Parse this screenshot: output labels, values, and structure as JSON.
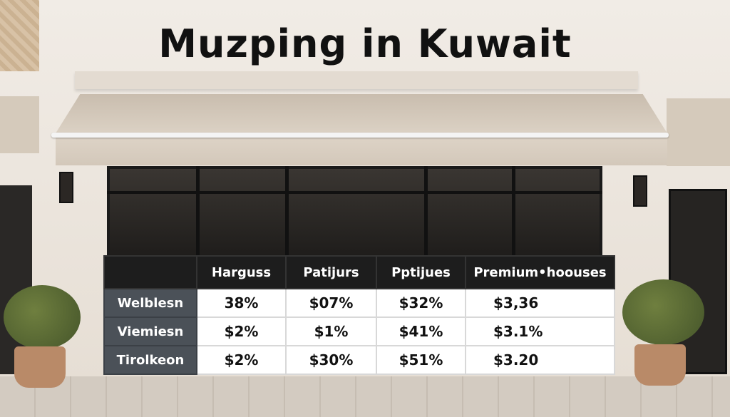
{
  "title": "Muzping in Kuwait",
  "table": {
    "headers": [
      "",
      "Harguss",
      "Patijurs",
      "Pptijues",
      "Premium•hoouses"
    ],
    "rows": [
      {
        "label": "Welblesn",
        "values": [
          "38%",
          "$07%",
          "$32%",
          "$3,36"
        ]
      },
      {
        "label": "Viemiesn",
        "values": [
          "$2%",
          "$1%",
          "$41%",
          "$3.1%"
        ]
      },
      {
        "label": "Tirolkeon",
        "values": [
          "$2%",
          "$30%",
          "$51%",
          "$3.20"
        ]
      }
    ]
  },
  "colors": {
    "header": "#1d1d1d",
    "row_label": "#4b5158",
    "wall": "#ece5dc",
    "awning": "#d9cfc2"
  }
}
